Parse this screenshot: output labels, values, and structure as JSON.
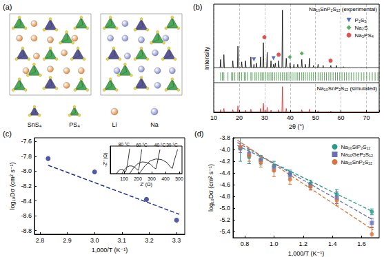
{
  "structure": {
    "title": "(a)",
    "legend": [
      {
        "label": "SnS₄",
        "color": "#4b4a8c",
        "marker": "tetrahedron"
      },
      {
        "label": "PS₄",
        "color": "#3ca34a",
        "marker": "tetrahedron"
      },
      {
        "label": "Li",
        "color": "#e07a1f",
        "marker": "sphere"
      },
      {
        "label": "Na",
        "color": "#6f79c9",
        "marker": "sphere"
      }
    ]
  },
  "chart_data": [
    {
      "title": "(b)",
      "type": "line",
      "x_label": "2θ (°)",
      "y_label": "Intensity",
      "xlim": [
        10,
        75
      ],
      "xticks": [
        10,
        20,
        30,
        40,
        50,
        60,
        70
      ],
      "tick_labels": "x",
      "grid": true,
      "experimental": {
        "name": "Na₁₀SnP₂S₁₂ (experimental)",
        "color": "#000000",
        "ylim": [
          0,
          110
        ],
        "x": [
          10,
          12.5,
          12.7,
          12.9,
          13.8,
          14.0,
          14.2,
          17.3,
          17.5,
          17.7,
          19.3,
          19.5,
          19.7,
          20.8,
          21.0,
          21.2,
          22.3,
          22.5,
          22.7,
          24.4,
          24.6,
          24.8,
          25.6,
          25.8,
          26.0,
          26.6,
          26.8,
          27.0,
          28.2,
          28.4,
          28.6,
          29.3,
          29.5,
          29.7,
          30.8,
          31.0,
          31.2,
          32.3,
          32.5,
          32.7,
          33.3,
          33.5,
          33.7,
          34.0,
          34.2,
          34.4,
          35.3,
          35.5,
          35.7,
          36.8,
          37.0,
          37.2,
          38.3,
          38.5,
          38.7,
          39.8,
          40.0,
          40.2,
          41.3,
          41.5,
          41.7,
          42.8,
          43.0,
          43.2,
          44.4,
          44.6,
          44.8,
          45.8,
          46.0,
          46.2,
          47.4,
          47.6,
          47.8,
          49.0,
          49.2,
          49.4,
          50.8,
          51.0,
          51.2,
          52.8,
          53.0,
          53.2,
          55.8,
          56.0,
          56.2,
          58.0,
          58.2,
          58.4,
          60.8,
          61.0,
          61.2,
          63.8,
          64.0,
          64.2,
          66.8,
          67.0,
          67.2,
          75
        ],
        "values": [
          4,
          4,
          18,
          4,
          4,
          26,
          4,
          4,
          16,
          4,
          4,
          40,
          4,
          4,
          14,
          4,
          4,
          16,
          4,
          4,
          22,
          4,
          4,
          10,
          4,
          4,
          12,
          4,
          4,
          22,
          4,
          4,
          46,
          4,
          4,
          30,
          4,
          4,
          16,
          4,
          4,
          10,
          4,
          4,
          12,
          4,
          4,
          16,
          4,
          4,
          100,
          4,
          4,
          20,
          4,
          4,
          12,
          4,
          4,
          10,
          4,
          4,
          10,
          4,
          4,
          18,
          4,
          4,
          10,
          4,
          4,
          20,
          4,
          4,
          8,
          4,
          4,
          10,
          4,
          4,
          8,
          4,
          4,
          8,
          4,
          4,
          8,
          4,
          4,
          6,
          4,
          4,
          5,
          4,
          4,
          5,
          4,
          4
        ]
      },
      "impurities": [
        {
          "name": "P₂S₅",
          "color": "#2a4fb0",
          "marker": "triangle-down",
          "x": [
            25.8,
            33.5
          ],
          "values": [
            18,
            20
          ]
        },
        {
          "name": "Na₂S",
          "color": "#2f9a3a",
          "marker": "diamond",
          "x": [
            39.9,
            44.6
          ],
          "values": [
            22,
            28
          ]
        },
        {
          "name": "Na₃PS₄",
          "color": "#d42a2a",
          "marker": "circle",
          "x": [
            29.9,
            35.5,
            55.9
          ],
          "values": [
            55,
            26,
            16
          ]
        }
      ],
      "reflections": {
        "color": "#2e8b2e",
        "x": [
          12.7,
          13.4,
          14.0,
          15.6,
          17.0,
          17.5,
          18.3,
          19.5,
          20.2,
          21.0,
          22.0,
          22.5,
          23.4,
          24.6,
          25.1,
          26.2,
          26.8,
          27.6,
          28.4,
          29.0,
          29.5,
          30.3,
          31.0,
          31.7,
          32.5,
          33.1,
          33.9,
          34.6,
          35.5,
          36.2,
          37.0,
          37.7,
          38.5,
          39.2,
          40.0,
          40.8,
          41.5,
          42.3,
          43.0,
          43.7,
          44.6,
          45.3,
          46.0,
          46.8,
          47.6,
          48.4,
          49.2,
          50.0,
          51.0,
          51.8,
          52.6,
          53.5,
          54.3,
          55.2,
          56.0,
          56.9,
          57.8,
          58.6,
          59.5,
          60.4,
          61.3,
          62.2,
          63.1,
          64.0,
          65.0,
          66.0,
          67.0,
          68.0,
          69.0,
          70.1,
          71.2,
          72.3,
          73.4,
          74.5
        ]
      },
      "simulated": {
        "name": "Na₁₀SnP₂S₁₂ (simulated)",
        "color": "#e02020",
        "ylim": [
          0,
          110
        ],
        "x": [
          10,
          12.5,
          12.7,
          12.9,
          13.8,
          14.0,
          14.2,
          17.3,
          17.5,
          17.7,
          19.3,
          19.5,
          19.7,
          22.3,
          22.5,
          22.7,
          24.4,
          24.6,
          24.8,
          28.2,
          28.4,
          28.6,
          29.3,
          29.5,
          29.7,
          30.8,
          31.0,
          31.2,
          32.3,
          32.5,
          32.7,
          35.3,
          35.5,
          35.7,
          36.8,
          37.0,
          37.2,
          38.3,
          38.5,
          38.7,
          44.4,
          44.6,
          44.8,
          47.4,
          47.6,
          47.8,
          50.8,
          51.0,
          51.2,
          55.8,
          56.0,
          56.2,
          75
        ],
        "values": [
          1,
          1,
          10,
          1,
          1,
          15,
          1,
          1,
          10,
          1,
          1,
          25,
          1,
          1,
          8,
          1,
          1,
          12,
          1,
          1,
          15,
          1,
          1,
          35,
          1,
          1,
          20,
          1,
          1,
          8,
          1,
          1,
          10,
          1,
          1,
          100,
          1,
          1,
          15,
          1,
          1,
          10,
          1,
          1,
          12,
          1,
          1,
          6,
          1,
          1,
          5,
          1,
          1
        ]
      }
    },
    {
      "title": "(c)",
      "type": "scatter",
      "x_label": "1,000/T (K⁻¹)",
      "y_label": "log₁₀Dσ (cm² s⁻¹)",
      "xlim": [
        2.78,
        3.33
      ],
      "xticks": [
        2.8,
        2.9,
        {
          "value": 3,
          "label": "3.0"
        },
        3.1,
        3.2,
        3.3
      ],
      "ylim": [
        -8.85,
        -7.55
      ],
      "yticks": [
        -7.6,
        -7.8,
        {
          "value": -8,
          "label": "-8.0"
        },
        -8.2,
        -8.4,
        -8.6,
        -8.8
      ],
      "grid": false,
      "series": [
        {
          "color": "#23308f",
          "marker": "circle",
          "x": [
            2.83,
            3.0,
            3.19,
            3.3
          ],
          "values": [
            -7.83,
            -8.01,
            -8.38,
            -8.66
          ],
          "fit": {
            "x": [
              2.83,
              3.31
            ],
            "values": [
              -7.92,
              -8.58
            ],
            "line_style": "dashed"
          }
        }
      ]
    },
    {
      "type": "line",
      "x_label": "Z' (Ω)",
      "y_label": "-Z'' (Ω)",
      "xlim": [
        0,
        520
      ],
      "xticks": [
        100,
        200,
        300,
        400,
        500
      ],
      "ylim": [
        0,
        160
      ],
      "tick_labels": "x",
      "grid": false,
      "series": [
        {
          "name": "80 °C",
          "color": "#000000",
          "x": [
            45,
            55,
            65,
            75,
            85,
            95,
            105,
            112,
            118,
            125,
            133,
            140
          ],
          "values": [
            0,
            12,
            20,
            24,
            24,
            20,
            14,
            12,
            30,
            60,
            100,
            145
          ]
        },
        {
          "name": "60 °C",
          "color": "#000000",
          "x": [
            85,
            100,
            120,
            140,
            160,
            180,
            195,
            205,
            212,
            220,
            228
          ],
          "values": [
            0,
            22,
            38,
            45,
            44,
            35,
            22,
            20,
            50,
            95,
            140
          ]
        },
        {
          "name": "40 °C",
          "color": "#000000",
          "x": [
            140,
            170,
            200,
            230,
            260,
            290,
            315,
            330,
            340,
            350,
            360
          ],
          "values": [
            0,
            35,
            58,
            68,
            66,
            55,
            35,
            28,
            60,
            100,
            140
          ]
        },
        {
          "name": "30 °C",
          "color": "#000000",
          "x": [
            210,
            250,
            290,
            330,
            370,
            410,
            435,
            450,
            462,
            475,
            488
          ],
          "values": [
            0,
            45,
            75,
            85,
            82,
            65,
            40,
            30,
            70,
            105,
            140
          ]
        }
      ]
    },
    {
      "title": "(d)",
      "type": "scatter",
      "x_label": "1,000/T (K⁻¹)",
      "y_label": "log₁₀Dσ (cm² s⁻¹)",
      "xlim": [
        0.72,
        1.72
      ],
      "xticks": [
        0.8,
        {
          "value": 1,
          "label": "1.0"
        },
        1.2,
        1.4,
        1.6
      ],
      "ylim": [
        -5.5,
        -3.8
      ],
      "yticks": [
        -3.8,
        {
          "value": -4,
          "label": "-4.0"
        },
        -4.2,
        -4.4,
        -4.6,
        -4.8,
        {
          "value": -5,
          "label": "-5.0"
        },
        -5.2,
        -5.4
      ],
      "grid": false,
      "legend": "upper right",
      "x": [
        0.77,
        0.83,
        0.91,
        1.0,
        1.11,
        1.25,
        1.43,
        1.67
      ],
      "series": [
        {
          "name": "Na₁₀SiP₂S₁₂",
          "color": "#2a9a8a",
          "marker": "circle",
          "values": [
            -3.98,
            -4.12,
            -4.18,
            -4.28,
            -4.41,
            -4.58,
            -4.76,
            -5.06
          ],
          "errors": [
            0.22,
            0.12,
            0.08,
            0.08,
            0.06,
            0.06,
            0.08,
            0.05
          ],
          "fit": {
            "x": [
              0.75,
              1.68
            ],
            "values": [
              -3.93,
              -5.06
            ],
            "line_style": "dashed"
          }
        },
        {
          "name": "Na₁₀GeP₂S₁₂",
          "color": "#6b6fb3",
          "marker": "square",
          "values": [
            -3.97,
            -4.07,
            -4.18,
            -4.31,
            -4.43,
            -4.62,
            -4.82,
            -5.25
          ],
          "errors": [
            0.08,
            0.08,
            0.06,
            0.06,
            0.06,
            0.06,
            0.1,
            0.08
          ],
          "fit": {
            "x": [
              0.75,
              1.68
            ],
            "values": [
              -3.88,
              -5.2
            ],
            "line_style": "dashed"
          }
        },
        {
          "name": "Na₁₀SnP₂S₁₂",
          "color": "#d9733a",
          "marker": "circle",
          "values": [
            -3.95,
            -4.1,
            -4.22,
            -4.36,
            -4.51,
            -4.63,
            -4.87,
            -5.44
          ],
          "errors": [
            0.06,
            0.1,
            0.08,
            0.1,
            0.08,
            0.06,
            0.08,
            0.12
          ],
          "fit": {
            "x": [
              0.75,
              1.68
            ],
            "values": [
              -3.84,
              -5.37
            ],
            "line_style": "dashed"
          }
        }
      ]
    }
  ]
}
